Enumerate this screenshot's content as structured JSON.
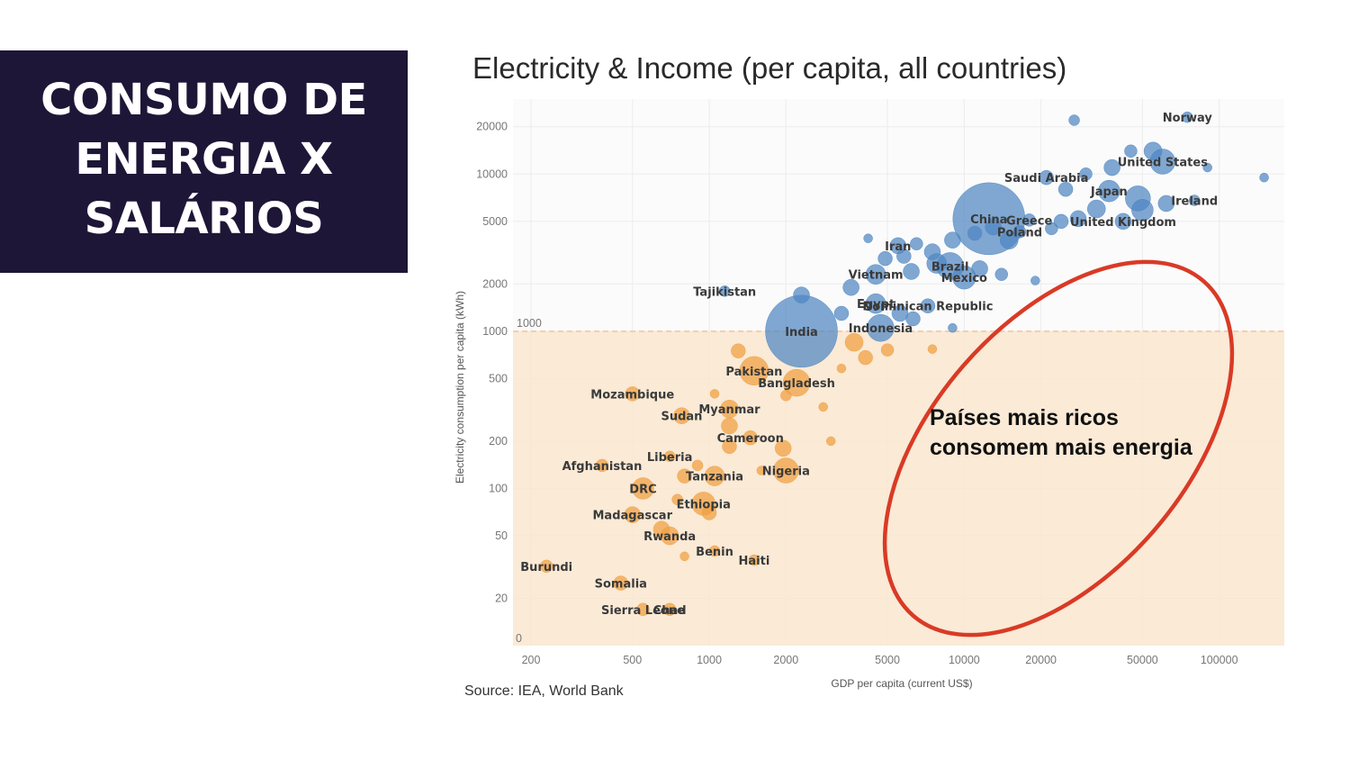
{
  "slide": {
    "title_lines": [
      "CONSUMO DE",
      "ENERGIA X",
      "SALÁRIOS"
    ],
    "colors": {
      "title_bg": "#1e1637",
      "title_text": "#ffffff",
      "ellipse": "#d93a26"
    }
  },
  "chart_data": {
    "type": "scatter",
    "title": "Electricity & Income (per capita, all countries)",
    "xlabel": "GDP per capita (current US$)",
    "ylabel": "Electricity consumption per capita (kWh)",
    "x_scale": "log",
    "y_scale": "log",
    "xlim": [
      170,
      180000
    ],
    "ylim": [
      10,
      30000
    ],
    "x_ticks": [
      200,
      500,
      1000,
      2000,
      5000,
      10000,
      20000,
      50000,
      100000
    ],
    "y_ticks": [
      20,
      50,
      100,
      200,
      500,
      1000,
      2000,
      5000,
      10000,
      20000
    ],
    "threshold": {
      "y": 1000,
      "label": "1000"
    },
    "zero_label": "0",
    "source": "Source: IEA, World Bank",
    "annotation": [
      "Países mais ricos",
      "consomem mais energia"
    ],
    "colors": {
      "above": "#4f86c2",
      "below": "#f0a040",
      "shade": "#f9e6cf",
      "threshold_line": "#f3c59a"
    },
    "series": [
      {
        "name": "Norway",
        "x": 75000,
        "y": 23000,
        "r": 6,
        "show_label": true
      },
      {
        "name": "United States",
        "x": 60000,
        "y": 12000,
        "r": 14,
        "show_label": true
      },
      {
        "name": "Saudi Arabia",
        "x": 21000,
        "y": 9500,
        "r": 8,
        "show_label": true
      },
      {
        "name": "Japan",
        "x": 37000,
        "y": 7800,
        "r": 12,
        "show_label": true
      },
      {
        "name": "Ireland",
        "x": 80000,
        "y": 6800,
        "r": 6,
        "show_label": true
      },
      {
        "name": "China",
        "x": 12500,
        "y": 5200,
        "r": 40,
        "show_label": true
      },
      {
        "name": "Greece",
        "x": 18000,
        "y": 5100,
        "r": 7,
        "show_label": true
      },
      {
        "name": "Poland",
        "x": 16500,
        "y": 4300,
        "r": 7,
        "show_label": true
      },
      {
        "name": "United Kingdom",
        "x": 42000,
        "y": 5000,
        "r": 9,
        "show_label": true
      },
      {
        "name": "Iran",
        "x": 5500,
        "y": 3500,
        "r": 9,
        "show_label": true
      },
      {
        "name": "Brazil",
        "x": 8800,
        "y": 2600,
        "r": 15,
        "show_label": true
      },
      {
        "name": "Mexico",
        "x": 10000,
        "y": 2200,
        "r": 13,
        "show_label": true
      },
      {
        "name": "Vietnam",
        "x": 4500,
        "y": 2300,
        "r": 11,
        "show_label": true
      },
      {
        "name": "Tajikistan",
        "x": 1150,
        "y": 1800,
        "r": 6,
        "show_label": true
      },
      {
        "name": "Egypt",
        "x": 4500,
        "y": 1500,
        "r": 11,
        "show_label": true
      },
      {
        "name": "Dominican Republic",
        "x": 7200,
        "y": 1450,
        "r": 8,
        "show_label": true
      },
      {
        "name": "India",
        "x": 2300,
        "y": 1000,
        "r": 40,
        "show_label": true
      },
      {
        "name": "Indonesia",
        "x": 4700,
        "y": 1050,
        "r": 15,
        "show_label": true
      },
      {
        "name": "Pakistan",
        "x": 1500,
        "y": 560,
        "r": 16,
        "show_label": true
      },
      {
        "name": "Bangladesh",
        "x": 2200,
        "y": 470,
        "r": 15,
        "show_label": true
      },
      {
        "name": "Mozambique",
        "x": 500,
        "y": 400,
        "r": 8,
        "show_label": true
      },
      {
        "name": "Myanmar",
        "x": 1200,
        "y": 320,
        "r": 10,
        "show_label": true
      },
      {
        "name": "Sudan",
        "x": 780,
        "y": 290,
        "r": 9,
        "show_label": true
      },
      {
        "name": "Cameroon",
        "x": 1450,
        "y": 210,
        "r": 8,
        "show_label": true
      },
      {
        "name": "Liberia",
        "x": 700,
        "y": 160,
        "r": 6,
        "show_label": true
      },
      {
        "name": "Afghanistan",
        "x": 380,
        "y": 140,
        "r": 7,
        "show_label": true
      },
      {
        "name": "Nigeria",
        "x": 2000,
        "y": 130,
        "r": 14,
        "show_label": true
      },
      {
        "name": "Tanzania",
        "x": 1050,
        "y": 120,
        "r": 11,
        "show_label": true
      },
      {
        "name": "DRC",
        "x": 550,
        "y": 100,
        "r": 12,
        "show_label": true
      },
      {
        "name": "Ethiopia",
        "x": 950,
        "y": 80,
        "r": 13,
        "show_label": true
      },
      {
        "name": "Madagascar",
        "x": 500,
        "y": 68,
        "r": 9,
        "show_label": true
      },
      {
        "name": "Rwanda",
        "x": 700,
        "y": 50,
        "r": 10,
        "show_label": true
      },
      {
        "name": "Benin",
        "x": 1050,
        "y": 40,
        "r": 6,
        "show_label": true
      },
      {
        "name": "Haiti",
        "x": 1500,
        "y": 35,
        "r": 6,
        "show_label": true
      },
      {
        "name": "Burundi",
        "x": 230,
        "y": 32,
        "r": 7,
        "show_label": true
      },
      {
        "name": "Somalia",
        "x": 450,
        "y": 25,
        "r": 8,
        "show_label": true
      },
      {
        "name": "Sierra Leone",
        "x": 550,
        "y": 17,
        "r": 7,
        "show_label": true
      },
      {
        "name": "Chad",
        "x": 700,
        "y": 17,
        "r": 7,
        "show_label": true
      },
      {
        "name": "",
        "x": 27000,
        "y": 22000,
        "r": 6
      },
      {
        "name": "",
        "x": 45000,
        "y": 14000,
        "r": 7
      },
      {
        "name": "",
        "x": 55000,
        "y": 14000,
        "r": 10
      },
      {
        "name": "",
        "x": 38000,
        "y": 11000,
        "r": 9
      },
      {
        "name": "",
        "x": 30000,
        "y": 10000,
        "r": 7
      },
      {
        "name": "",
        "x": 90000,
        "y": 11000,
        "r": 5
      },
      {
        "name": "",
        "x": 150000,
        "y": 9500,
        "r": 5
      },
      {
        "name": "",
        "x": 25000,
        "y": 8000,
        "r": 8
      },
      {
        "name": "",
        "x": 48000,
        "y": 7000,
        "r": 14
      },
      {
        "name": "",
        "x": 33000,
        "y": 6000,
        "r": 10
      },
      {
        "name": "",
        "x": 50000,
        "y": 5900,
        "r": 12
      },
      {
        "name": "",
        "x": 62000,
        "y": 6500,
        "r": 9
      },
      {
        "name": "",
        "x": 24000,
        "y": 5000,
        "r": 8
      },
      {
        "name": "",
        "x": 28000,
        "y": 5200,
        "r": 9
      },
      {
        "name": "",
        "x": 22000,
        "y": 4500,
        "r": 7
      },
      {
        "name": "",
        "x": 15000,
        "y": 3800,
        "r": 10
      },
      {
        "name": "",
        "x": 13000,
        "y": 4600,
        "r": 9
      },
      {
        "name": "",
        "x": 11000,
        "y": 4200,
        "r": 8
      },
      {
        "name": "",
        "x": 9000,
        "y": 3800,
        "r": 9
      },
      {
        "name": "",
        "x": 7500,
        "y": 3200,
        "r": 9
      },
      {
        "name": "",
        "x": 6500,
        "y": 3600,
        "r": 7
      },
      {
        "name": "",
        "x": 4200,
        "y": 3900,
        "r": 5
      },
      {
        "name": "",
        "x": 5800,
        "y": 3000,
        "r": 8
      },
      {
        "name": "",
        "x": 4900,
        "y": 2900,
        "r": 8
      },
      {
        "name": "",
        "x": 6200,
        "y": 2400,
        "r": 9
      },
      {
        "name": "",
        "x": 7800,
        "y": 2700,
        "r": 11
      },
      {
        "name": "",
        "x": 11500,
        "y": 2500,
        "r": 9
      },
      {
        "name": "",
        "x": 14000,
        "y": 2300,
        "r": 7
      },
      {
        "name": "",
        "x": 19000,
        "y": 2100,
        "r": 5
      },
      {
        "name": "",
        "x": 3600,
        "y": 1900,
        "r": 9
      },
      {
        "name": "",
        "x": 2300,
        "y": 1700,
        "r": 9
      },
      {
        "name": "",
        "x": 3300,
        "y": 1300,
        "r": 8
      },
      {
        "name": "",
        "x": 5600,
        "y": 1300,
        "r": 9
      },
      {
        "name": "",
        "x": 6300,
        "y": 1200,
        "r": 8
      },
      {
        "name": "",
        "x": 9000,
        "y": 1050,
        "r": 5
      },
      {
        "name": "",
        "x": 3700,
        "y": 850,
        "r": 10
      },
      {
        "name": "",
        "x": 4100,
        "y": 680,
        "r": 8
      },
      {
        "name": "",
        "x": 5000,
        "y": 760,
        "r": 7
      },
      {
        "name": "",
        "x": 7500,
        "y": 770,
        "r": 5
      },
      {
        "name": "",
        "x": 1300,
        "y": 750,
        "r": 8
      },
      {
        "name": "",
        "x": 3300,
        "y": 580,
        "r": 5
      },
      {
        "name": "",
        "x": 2800,
        "y": 330,
        "r": 5
      },
      {
        "name": "",
        "x": 2000,
        "y": 390,
        "r": 6
      },
      {
        "name": "",
        "x": 1200,
        "y": 250,
        "r": 9
      },
      {
        "name": "",
        "x": 1200,
        "y": 185,
        "r": 8
      },
      {
        "name": "",
        "x": 1950,
        "y": 180,
        "r": 9
      },
      {
        "name": "",
        "x": 3000,
        "y": 200,
        "r": 5
      },
      {
        "name": "",
        "x": 1600,
        "y": 130,
        "r": 5
      },
      {
        "name": "",
        "x": 900,
        "y": 140,
        "r": 6
      },
      {
        "name": "",
        "x": 800,
        "y": 120,
        "r": 8
      },
      {
        "name": "",
        "x": 1050,
        "y": 400,
        "r": 5
      },
      {
        "name": "",
        "x": 750,
        "y": 85,
        "r": 6
      },
      {
        "name": "",
        "x": 1000,
        "y": 70,
        "r": 8
      },
      {
        "name": "",
        "x": 650,
        "y": 55,
        "r": 9
      },
      {
        "name": "",
        "x": 800,
        "y": 37,
        "r": 5
      }
    ]
  }
}
